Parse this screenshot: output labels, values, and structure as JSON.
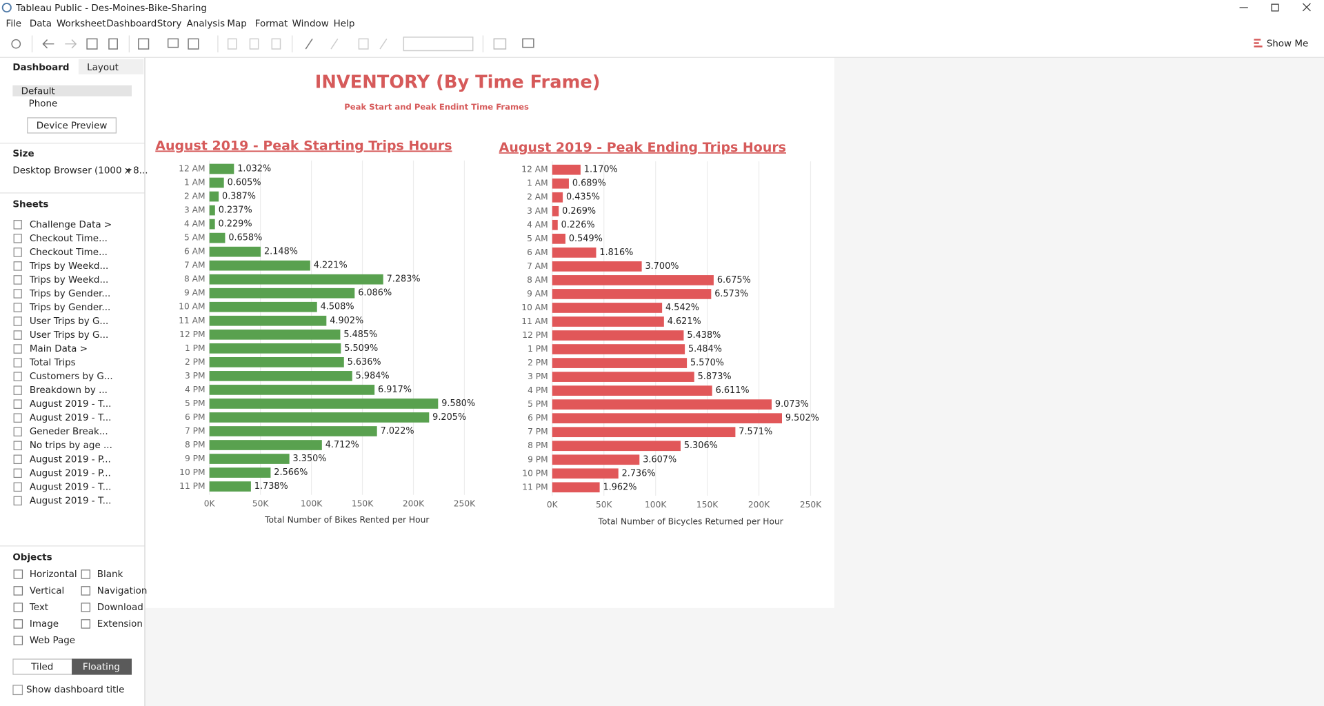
{
  "window": {
    "title": "Tableau Public - Des-Moines-Bike-Sharing"
  },
  "menu": [
    "File",
    "Data",
    "Worksheet",
    "Dashboard",
    "Story",
    "Analysis",
    "Map",
    "Format",
    "Window",
    "Help"
  ],
  "toolbar": {
    "show_me": "Show Me"
  },
  "side_panel": {
    "tabs": [
      "Dashboard",
      "Layout"
    ],
    "devices": [
      "Default",
      "Phone"
    ],
    "device_preview": "Device Preview",
    "size_heading": "Size",
    "size_value": "Desktop Browser (1000 x 8...",
    "sheets_heading": "Sheets",
    "sheets": [
      "Challenge Data >",
      "Checkout Time...",
      "Checkout Time...",
      "Trips by Weekd...",
      "Trips by Weekd...",
      "Trips by Gender...",
      "Trips by Gender...",
      "User Trips by G...",
      "User Trips by G...",
      "Main Data >",
      "Total Trips",
      "Customers by G...",
      "Breakdown by ...",
      "August 2019 - T...",
      "August 2019 - T...",
      "Geneder Break...",
      "No trips by age ...",
      "August 2019 - P...",
      "August 2019 - P...",
      "August 2019 - T...",
      "August 2019 - T..."
    ],
    "objects_heading": "Objects",
    "objects": [
      [
        "Horizontal",
        "Blank"
      ],
      [
        "Vertical",
        "Navigation"
      ],
      [
        "Text",
        "Download"
      ],
      [
        "Image",
        "Extension"
      ],
      [
        "Web Page"
      ]
    ],
    "layout_modes": [
      "Tiled",
      "Floating"
    ],
    "show_title": "Show dashboard title"
  },
  "dashboard": {
    "title": "INVENTORY (By Time Frame)",
    "subtitle": "Peak Start and Peak Endint Time Frames"
  },
  "chart_data": [
    {
      "type": "bar",
      "orientation": "horizontal",
      "title": "August 2019 - Peak Starting Trips Hours",
      "xlabel": "Total Number of Bikes Rented per Hour",
      "color": "#59a14f",
      "grid": true,
      "categories": [
        "12 AM",
        "1 AM",
        "2 AM",
        "3 AM",
        "4 AM",
        "5 AM",
        "6 AM",
        "7 AM",
        "8 AM",
        "9 AM",
        "10 AM",
        "11 AM",
        "12 PM",
        "1 PM",
        "2 PM",
        "3 PM",
        "4 PM",
        "5 PM",
        "6 PM",
        "7 PM",
        "8 PM",
        "9 PM",
        "10 PM",
        "11 PM"
      ],
      "values": [
        24100,
        14200,
        9100,
        5500,
        5400,
        15400,
        50300,
        98800,
        170400,
        142400,
        105500,
        114700,
        128300,
        128900,
        131900,
        140000,
        161900,
        224200,
        215400,
        164300,
        110300,
        78400,
        60000,
        40700
      ],
      "share_labels": [
        "1.032%",
        "0.605%",
        "0.387%",
        "0.237%",
        "0.229%",
        "0.658%",
        "2.148%",
        "4.221%",
        "7.283%",
        "6.086%",
        "4.508%",
        "4.902%",
        "5.485%",
        "5.509%",
        "5.636%",
        "5.984%",
        "6.917%",
        "9.580%",
        "9.205%",
        "7.022%",
        "4.712%",
        "3.350%",
        "2.566%",
        "1.738%"
      ],
      "xlim": [
        0,
        270000
      ],
      "xticks": [
        {
          "value": 0,
          "label": "0K"
        },
        {
          "value": 50000,
          "label": "50K"
        },
        {
          "value": 100000,
          "label": "100K"
        },
        {
          "value": 150000,
          "label": "150K"
        },
        {
          "value": 200000,
          "label": "200K"
        },
        {
          "value": 250000,
          "label": "250K"
        }
      ]
    },
    {
      "type": "bar",
      "orientation": "horizontal",
      "title": "August 2019 - Peak Ending Trips Hours",
      "xlabel": "Total Number of Bicycles Returned per Hour",
      "color": "#e15759",
      "grid": true,
      "categories": [
        "12 AM",
        "1 AM",
        "2 AM",
        "3 AM",
        "4 AM",
        "5 AM",
        "6 AM",
        "7 AM",
        "8 AM",
        "9 AM",
        "10 AM",
        "11 AM",
        "12 PM",
        "1 PM",
        "2 PM",
        "3 PM",
        "4 PM",
        "5 PM",
        "6 PM",
        "7 PM",
        "8 PM",
        "9 PM",
        "10 PM",
        "11 PM"
      ],
      "values": [
        27400,
        16100,
        10200,
        6300,
        5300,
        12800,
        42500,
        86600,
        156200,
        153800,
        106300,
        108100,
        127200,
        128300,
        130300,
        137400,
        154700,
        212300,
        222300,
        177200,
        124200,
        84400,
        64000,
        45900
      ],
      "share_labels": [
        "1.170%",
        "0.689%",
        "0.435%",
        "0.269%",
        "0.226%",
        "0.549%",
        "1.816%",
        "3.700%",
        "6.675%",
        "6.573%",
        "4.542%",
        "4.621%",
        "5.438%",
        "5.484%",
        "5.570%",
        "5.873%",
        "6.611%",
        "9.073%",
        "9.502%",
        "7.571%",
        "5.306%",
        "3.607%",
        "2.736%",
        "1.962%"
      ],
      "xlim": [
        0,
        270000
      ],
      "xticks": [
        {
          "value": 0,
          "label": "0K"
        },
        {
          "value": 50000,
          "label": "50K"
        },
        {
          "value": 100000,
          "label": "100K"
        },
        {
          "value": 150000,
          "label": "150K"
        },
        {
          "value": 200000,
          "label": "200K"
        },
        {
          "value": 250000,
          "label": "250K"
        }
      ]
    }
  ]
}
